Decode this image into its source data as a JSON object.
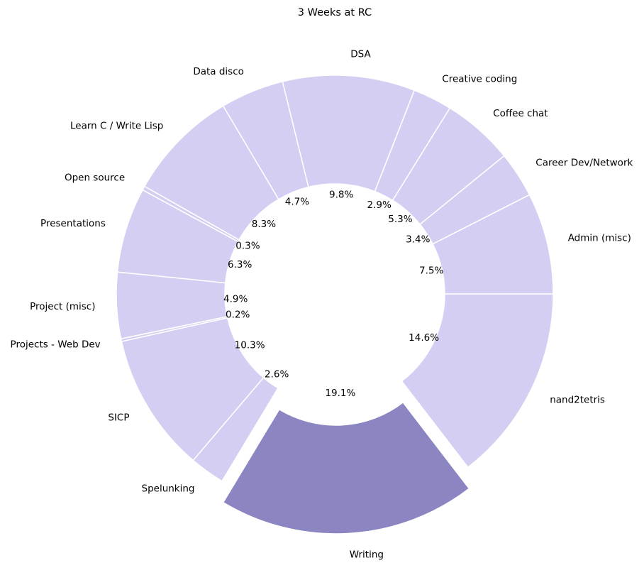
{
  "chart_data": {
    "type": "pie",
    "title": "3 Weeks at RC",
    "style": "donut",
    "colors": {
      "base": "#d4cef3",
      "highlight": "#8b86c1",
      "edge": "#ffffff"
    },
    "highlighted": "Writing",
    "slices": [
      {
        "label": "nand2tetris",
        "value": 14.6,
        "pct_text": "14.6%"
      },
      {
        "label": "Writing",
        "value": 19.1,
        "pct_text": "19.1%"
      },
      {
        "label": "Spelunking",
        "value": 2.6,
        "pct_text": "2.6%"
      },
      {
        "label": "SICP",
        "value": 10.3,
        "pct_text": "10.3%"
      },
      {
        "label": "Projects - Web Dev",
        "value": 0.2,
        "pct_text": "0.2%"
      },
      {
        "label": "Project (misc)",
        "value": 4.9,
        "pct_text": "4.9%"
      },
      {
        "label": "Presentations",
        "value": 6.3,
        "pct_text": "6.3%"
      },
      {
        "label": "Open source",
        "value": 0.3,
        "pct_text": "0.3%"
      },
      {
        "label": "Learn C / Write Lisp",
        "value": 8.3,
        "pct_text": "8.3%"
      },
      {
        "label": "Data disco",
        "value": 4.7,
        "pct_text": "4.7%"
      },
      {
        "label": "DSA",
        "value": 9.8,
        "pct_text": "9.8%"
      },
      {
        "label": "Creative coding",
        "value": 2.9,
        "pct_text": "2.9%"
      },
      {
        "label": "Coffee chat",
        "value": 5.3,
        "pct_text": "5.3%"
      },
      {
        "label": "Career Dev/Network",
        "value": 3.4,
        "pct_text": "3.4%"
      },
      {
        "label": "Admin (misc)",
        "value": 7.5,
        "pct_text": "7.5%"
      }
    ]
  }
}
